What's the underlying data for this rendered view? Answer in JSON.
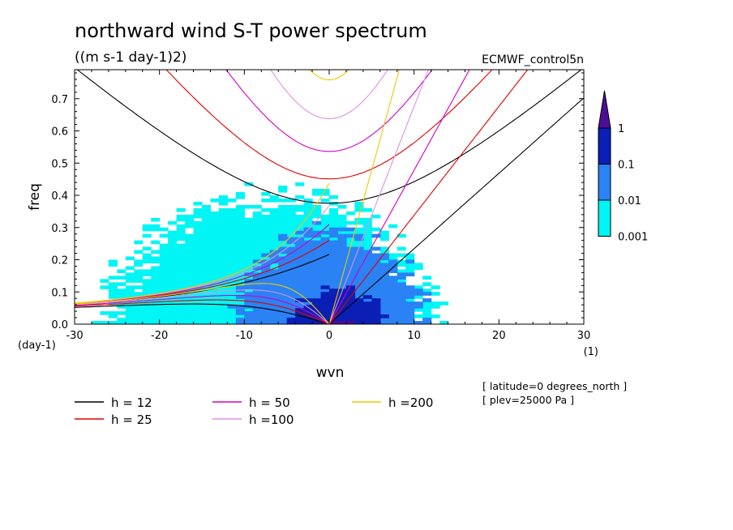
{
  "chart_data": {
    "type": "line",
    "title": "northward wind S-T power spectrum",
    "subtitle": "((m s-1 day-1)2)",
    "dataset": "ECMWF_control5n",
    "xlabel": "wvn",
    "ylabel": "freq",
    "x_unit": "(1)",
    "y_unit": "(day-1)",
    "xlim": [
      -30,
      30
    ],
    "ylim": [
      0,
      0.79
    ],
    "xticks": [
      -30,
      -20,
      -10,
      0,
      10,
      20,
      30
    ],
    "yticks": [
      0.0,
      0.1,
      0.2,
      0.3,
      0.4,
      0.5,
      0.6,
      0.7
    ],
    "xtick_labels": [
      "-30",
      "-20",
      "-10",
      "0",
      "10",
      "20",
      "30"
    ],
    "ytick_labels": [
      "0.0",
      "0.1",
      "0.2",
      "0.3",
      "0.4",
      "0.5",
      "0.6",
      "0.7"
    ],
    "grid": false,
    "colorbar": {
      "levels": [
        "1",
        "0.1",
        "0.01",
        "0.001"
      ],
      "colors": [
        "#4b0f96",
        "#0a1fb5",
        "#2a82f5",
        "#00f5f5"
      ]
    },
    "series": [
      {
        "name": "h = 12",
        "equivalent_depth_m": 12,
        "color": "#000000"
      },
      {
        "name": "h = 25",
        "equivalent_depth_m": 25,
        "color": "#e00000"
      },
      {
        "name": "h = 50",
        "equivalent_depth_m": 50,
        "color": "#d000c8"
      },
      {
        "name": "h =100",
        "equivalent_depth_m": 100,
        "color": "#e090e0"
      },
      {
        "name": "h =200",
        "equivalent_depth_m": 200,
        "color": "#f0c800"
      }
    ],
    "annotations": [
      "[ latitude=0 degrees_north ]",
      "[ plev=25000 Pa ]"
    ],
    "power_regions": [
      {
        "level": 0.001,
        "x": [
          -28,
          14
        ],
        "y": [
          0.0,
          0.44
        ]
      },
      {
        "level": 0.01,
        "x": [
          -12,
          12
        ],
        "y": [
          0.0,
          0.32
        ]
      },
      {
        "level": 0.1,
        "x": [
          -5,
          7
        ],
        "y": [
          0.0,
          0.12
        ]
      },
      {
        "level": 1,
        "x": [
          0,
          3
        ],
        "y": [
          0.0,
          0.02
        ]
      }
    ]
  }
}
